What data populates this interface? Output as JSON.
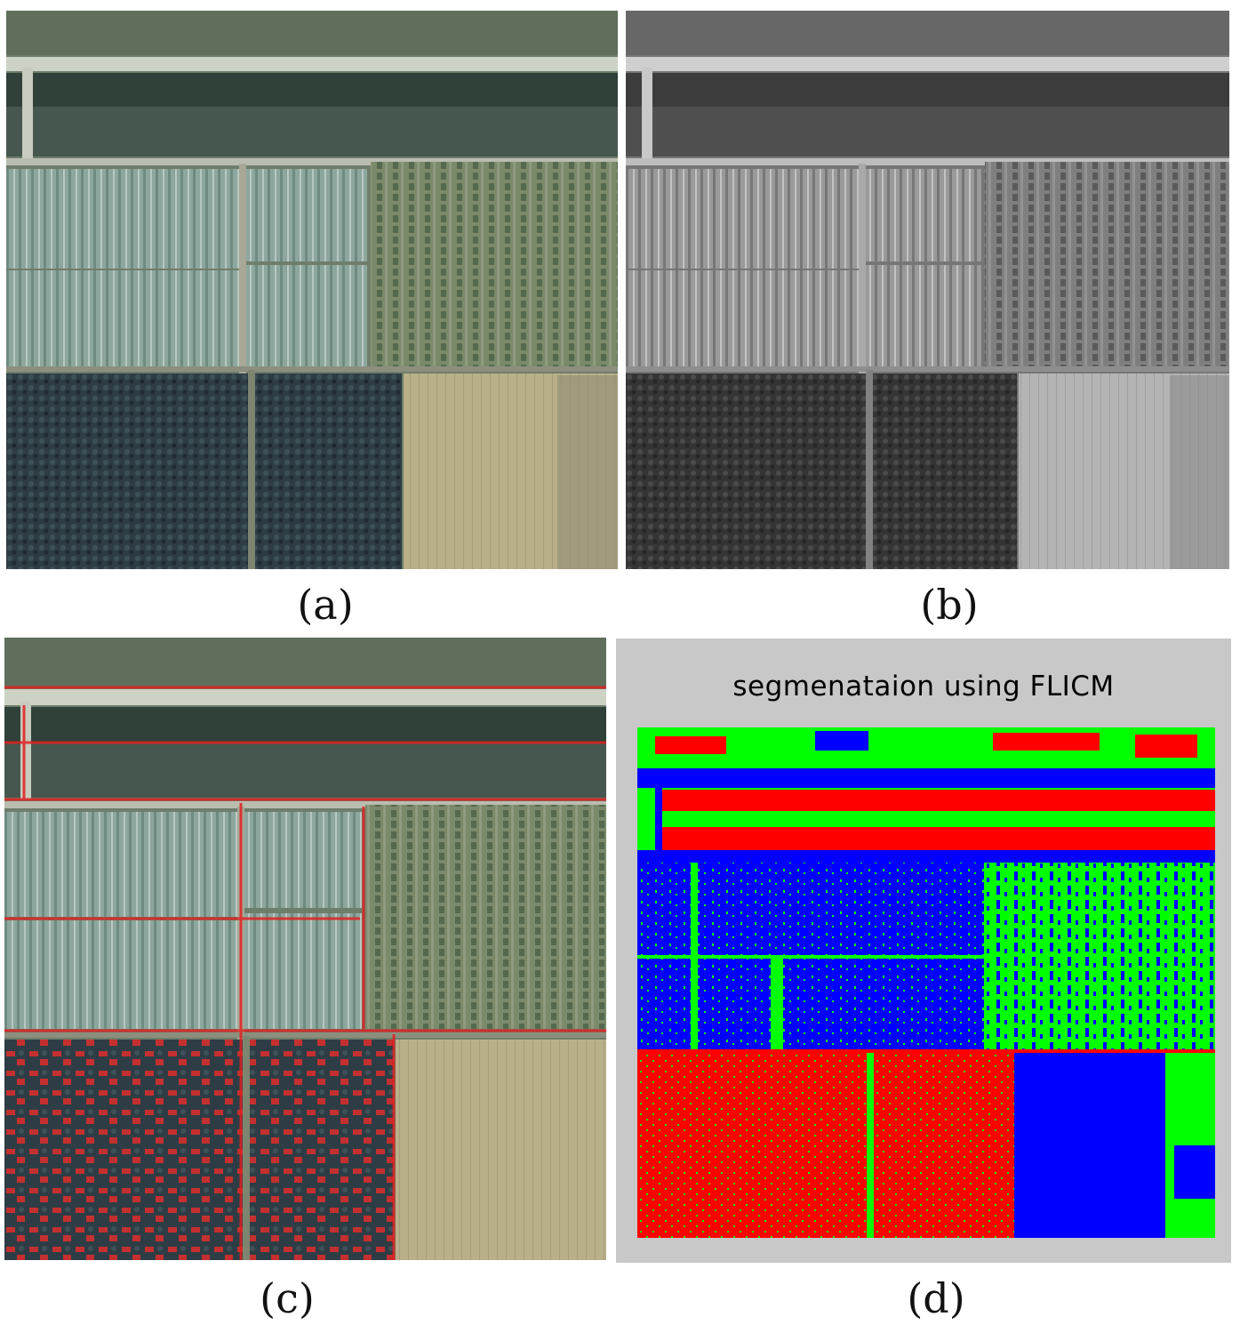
{
  "figure": {
    "captions": {
      "a": "(a)",
      "b": "(b)",
      "c": "(c)",
      "d": "(d)"
    },
    "panel_d_title": "segmenataion using FLICM",
    "colors": {
      "segment_red": "#ff0000",
      "segment_green": "#00ff00",
      "segment_blue": "#0000ff",
      "panel_d_background": "#c8c8c8",
      "overlay_edge": "#e02020"
    }
  }
}
